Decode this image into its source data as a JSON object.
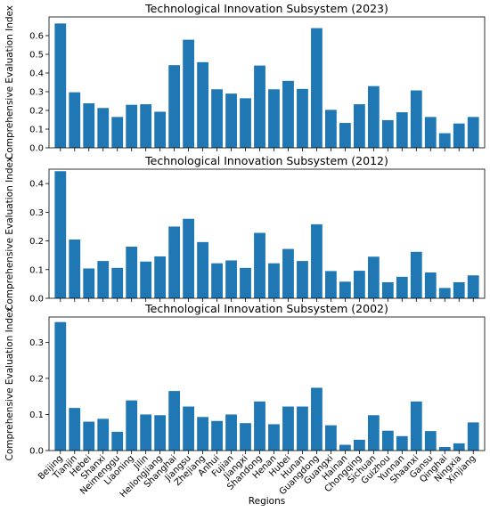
{
  "figure": {
    "shared_ylabel": "Comprehensive Evaluation Index",
    "shared_xlabel": "Regions",
    "bar_color": "#1f77b4"
  },
  "chart_data": [
    {
      "type": "bar",
      "title": "Technological Innovation Subsystem (2023)",
      "xlabel": "",
      "ylabel": "Comprehensive Evaluation Index",
      "ylim": [
        0,
        0.7
      ],
      "yticks": [
        "0.0",
        "0.1",
        "0.2",
        "0.3",
        "0.4",
        "0.5",
        "0.6"
      ],
      "categories": [
        "Beijing",
        "Tianjin",
        "Hebei",
        "Shanxi",
        "Neimenggu",
        "Liaoning",
        "Jilin",
        "Heilongjiang",
        "Shanghai",
        "Jiangsu",
        "Zhejiang",
        "Anhui",
        "Fujian",
        "Jiangxi",
        "Shandong",
        "Henan",
        "Hubei",
        "Hunan",
        "Guangdong",
        "Guangxi",
        "Hainan",
        "Chongqing",
        "Sichuan",
        "Guizhou",
        "Yunnan",
        "Shaanxi",
        "Gansu",
        "Qinghai",
        "Ningxia",
        "Xinjiang"
      ],
      "values": [
        0.665,
        0.297,
        0.238,
        0.213,
        0.165,
        0.23,
        0.233,
        0.193,
        0.442,
        0.578,
        0.458,
        0.313,
        0.29,
        0.265,
        0.44,
        0.313,
        0.358,
        0.315,
        0.64,
        0.203,
        0.133,
        0.233,
        0.33,
        0.148,
        0.19,
        0.307,
        0.165,
        0.078,
        0.13,
        0.165
      ]
    },
    {
      "type": "bar",
      "title": "Technological Innovation Subsystem (2012)",
      "xlabel": "",
      "ylabel": "Comprehensive Evaluation Index",
      "ylim": [
        0,
        0.45
      ],
      "yticks": [
        "0.0",
        "0.1",
        "0.2",
        "0.3",
        "0.4"
      ],
      "categories": [
        "Beijing",
        "Tianjin",
        "Hebei",
        "Shanxi",
        "Neimenggu",
        "Liaoning",
        "Jilin",
        "Heilongjiang",
        "Shanghai",
        "Jiangsu",
        "Zhejiang",
        "Anhui",
        "Fujian",
        "Jiangxi",
        "Shandong",
        "Henan",
        "Hubei",
        "Hunan",
        "Guangdong",
        "Guangxi",
        "Hainan",
        "Chongqing",
        "Sichuan",
        "Guizhou",
        "Yunnan",
        "Shaanxi",
        "Gansu",
        "Qinghai",
        "Ningxia",
        "Xinjiang"
      ],
      "values": [
        0.443,
        0.205,
        0.104,
        0.13,
        0.106,
        0.18,
        0.128,
        0.146,
        0.25,
        0.277,
        0.196,
        0.122,
        0.132,
        0.106,
        0.228,
        0.122,
        0.172,
        0.13,
        0.258,
        0.095,
        0.058,
        0.096,
        0.145,
        0.056,
        0.075,
        0.162,
        0.09,
        0.036,
        0.056,
        0.08
      ]
    },
    {
      "type": "bar",
      "title": "Technological Innovation Subsystem (2002)",
      "xlabel": "Regions",
      "ylabel": "Comprehensive Evaluation Index",
      "ylim": [
        0,
        0.37
      ],
      "yticks": [
        "0.0",
        "0.1",
        "0.2",
        "0.3"
      ],
      "categories": [
        "Beijing",
        "Tianjin",
        "Hebei",
        "Shanxi",
        "Neimenggu",
        "Liaoning",
        "Jilin",
        "Heilongjiang",
        "Shanghai",
        "Jiangsu",
        "Zhejiang",
        "Anhui",
        "Fujian",
        "Jiangxi",
        "Shandong",
        "Henan",
        "Hubei",
        "Hunan",
        "Guangdong",
        "Guangxi",
        "Hainan",
        "Chongqing",
        "Sichuan",
        "Guizhou",
        "Yunnan",
        "Shaanxi",
        "Gansu",
        "Qinghai",
        "Ningxia",
        "Xinjiang"
      ],
      "values": [
        0.356,
        0.118,
        0.08,
        0.088,
        0.052,
        0.139,
        0.1,
        0.098,
        0.165,
        0.122,
        0.093,
        0.082,
        0.1,
        0.076,
        0.136,
        0.073,
        0.122,
        0.122,
        0.174,
        0.07,
        0.016,
        0.03,
        0.098,
        0.055,
        0.04,
        0.136,
        0.054,
        0.01,
        0.02,
        0.078
      ]
    }
  ]
}
